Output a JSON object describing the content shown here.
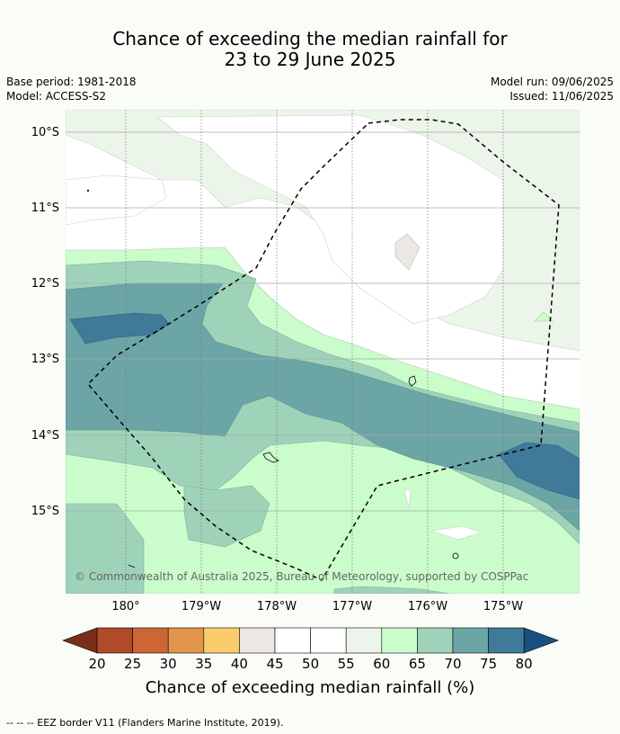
{
  "title_line1": "Chance of exceeding the median rainfall for",
  "title_line2": "23 to 29 June 2025",
  "base_period": "Base period: 1981-2018",
  "model": "Model: ACCESS-S2",
  "model_run": "Model run: 09/06/2025",
  "issued": "Issued: 11/06/2025",
  "copyright": "© Commonwealth of Australia 2025, Bureau of Meteorology, supported by COSPPac",
  "lat_labels": [
    "10°S",
    "11°S",
    "12°S",
    "13°S",
    "14°S",
    "15°S"
  ],
  "lon_labels": [
    "180°",
    "179°W",
    "178°W",
    "177°W",
    "176°W",
    "175°W"
  ],
  "colorbar": {
    "ticks": [
      "20",
      "25",
      "30",
      "35",
      "40",
      "45",
      "50",
      "55",
      "60",
      "65",
      "70",
      "75",
      "80"
    ],
    "colors": [
      "#7a2e19",
      "#b04a28",
      "#cc6634",
      "#e0954a",
      "#fbcd6a",
      "#ebe8e4",
      "#ffffff",
      "#ffffff",
      "#ecf5ea",
      "#cbfccc",
      "#9ed3b9",
      "#6ca5a5",
      "#3f7a98",
      "#1a4f82"
    ],
    "label": "Chance of exceeding median rainfall (%)"
  },
  "footer": "--  --  -- EEZ border V11 (Flanders Marine Institute, 2019)."
}
